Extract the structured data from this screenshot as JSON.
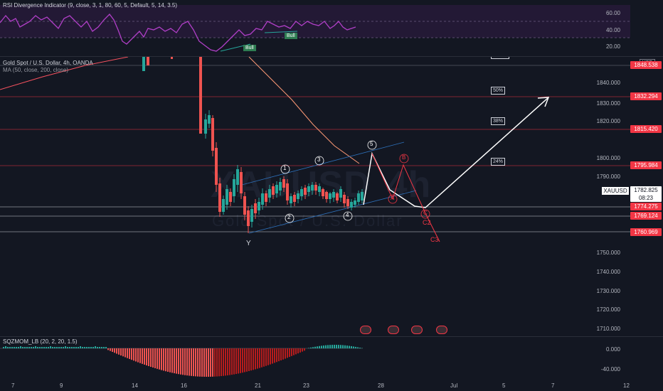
{
  "rsi": {
    "title": "RSI Divergence Indicator (9, close, 3, 1, 80, 60, 5, Default, 5, 14, 3.5)",
    "axis": [
      "60.00",
      "40.00",
      "20.00"
    ],
    "bull_labels": [
      "Bull",
      "Bull"
    ]
  },
  "main": {
    "symbol_line": "Gold Spot / U.S. Dollar, 4h, OANDA",
    "ma_line": "MA (50, close, 200, close)",
    "watermark_symbol": "XAUUSD",
    "watermark_interval": "4h",
    "watermark_name": "Gold Spot / U.S. Dollar",
    "currency": "USD",
    "axis": [
      "1840.000",
      "1830.000",
      "1820.000",
      "1800.000",
      "1790.000",
      "1750.000",
      "1740.000",
      "1730.000",
      "1720.000",
      "1710.000"
    ],
    "price_tags": {
      "top": "1848.538",
      "t1": "1832.294",
      "t2": "1815.420",
      "t3": "1795.984",
      "t4": "1774.275",
      "t5": "1769.124",
      "t6": "1760.969",
      "current_price": "1782.825",
      "countdown": "08:23",
      "symbol": "XAUUSD"
    },
    "fib_labels": [
      "50%",
      "38%",
      "24%"
    ],
    "wave_labels": {
      "w1": "1",
      "w2": "2",
      "w3": "3",
      "w4": "4",
      "w5": "5",
      "a": "A",
      "b": "B",
      "c": "C",
      "y": "Y",
      "c2": "C2",
      "c3": "C3"
    }
  },
  "sqz": {
    "title": "SQZMOM_LB (20, 2, 20, 1.5)",
    "axis": [
      "0.000",
      "-40.000"
    ]
  },
  "dates": [
    "7",
    "9",
    "14",
    "16",
    "21",
    "23",
    "28",
    "Jul",
    "5",
    "7",
    "12"
  ],
  "colors": {
    "bg": "#131722",
    "up": "#26a69a",
    "down": "#ef5350",
    "accent_red": "#f23645",
    "ma": "#f7525f",
    "channel": "#2962ff",
    "rsi_line": "#9c27b0",
    "wave_white": "#ffffff"
  }
}
